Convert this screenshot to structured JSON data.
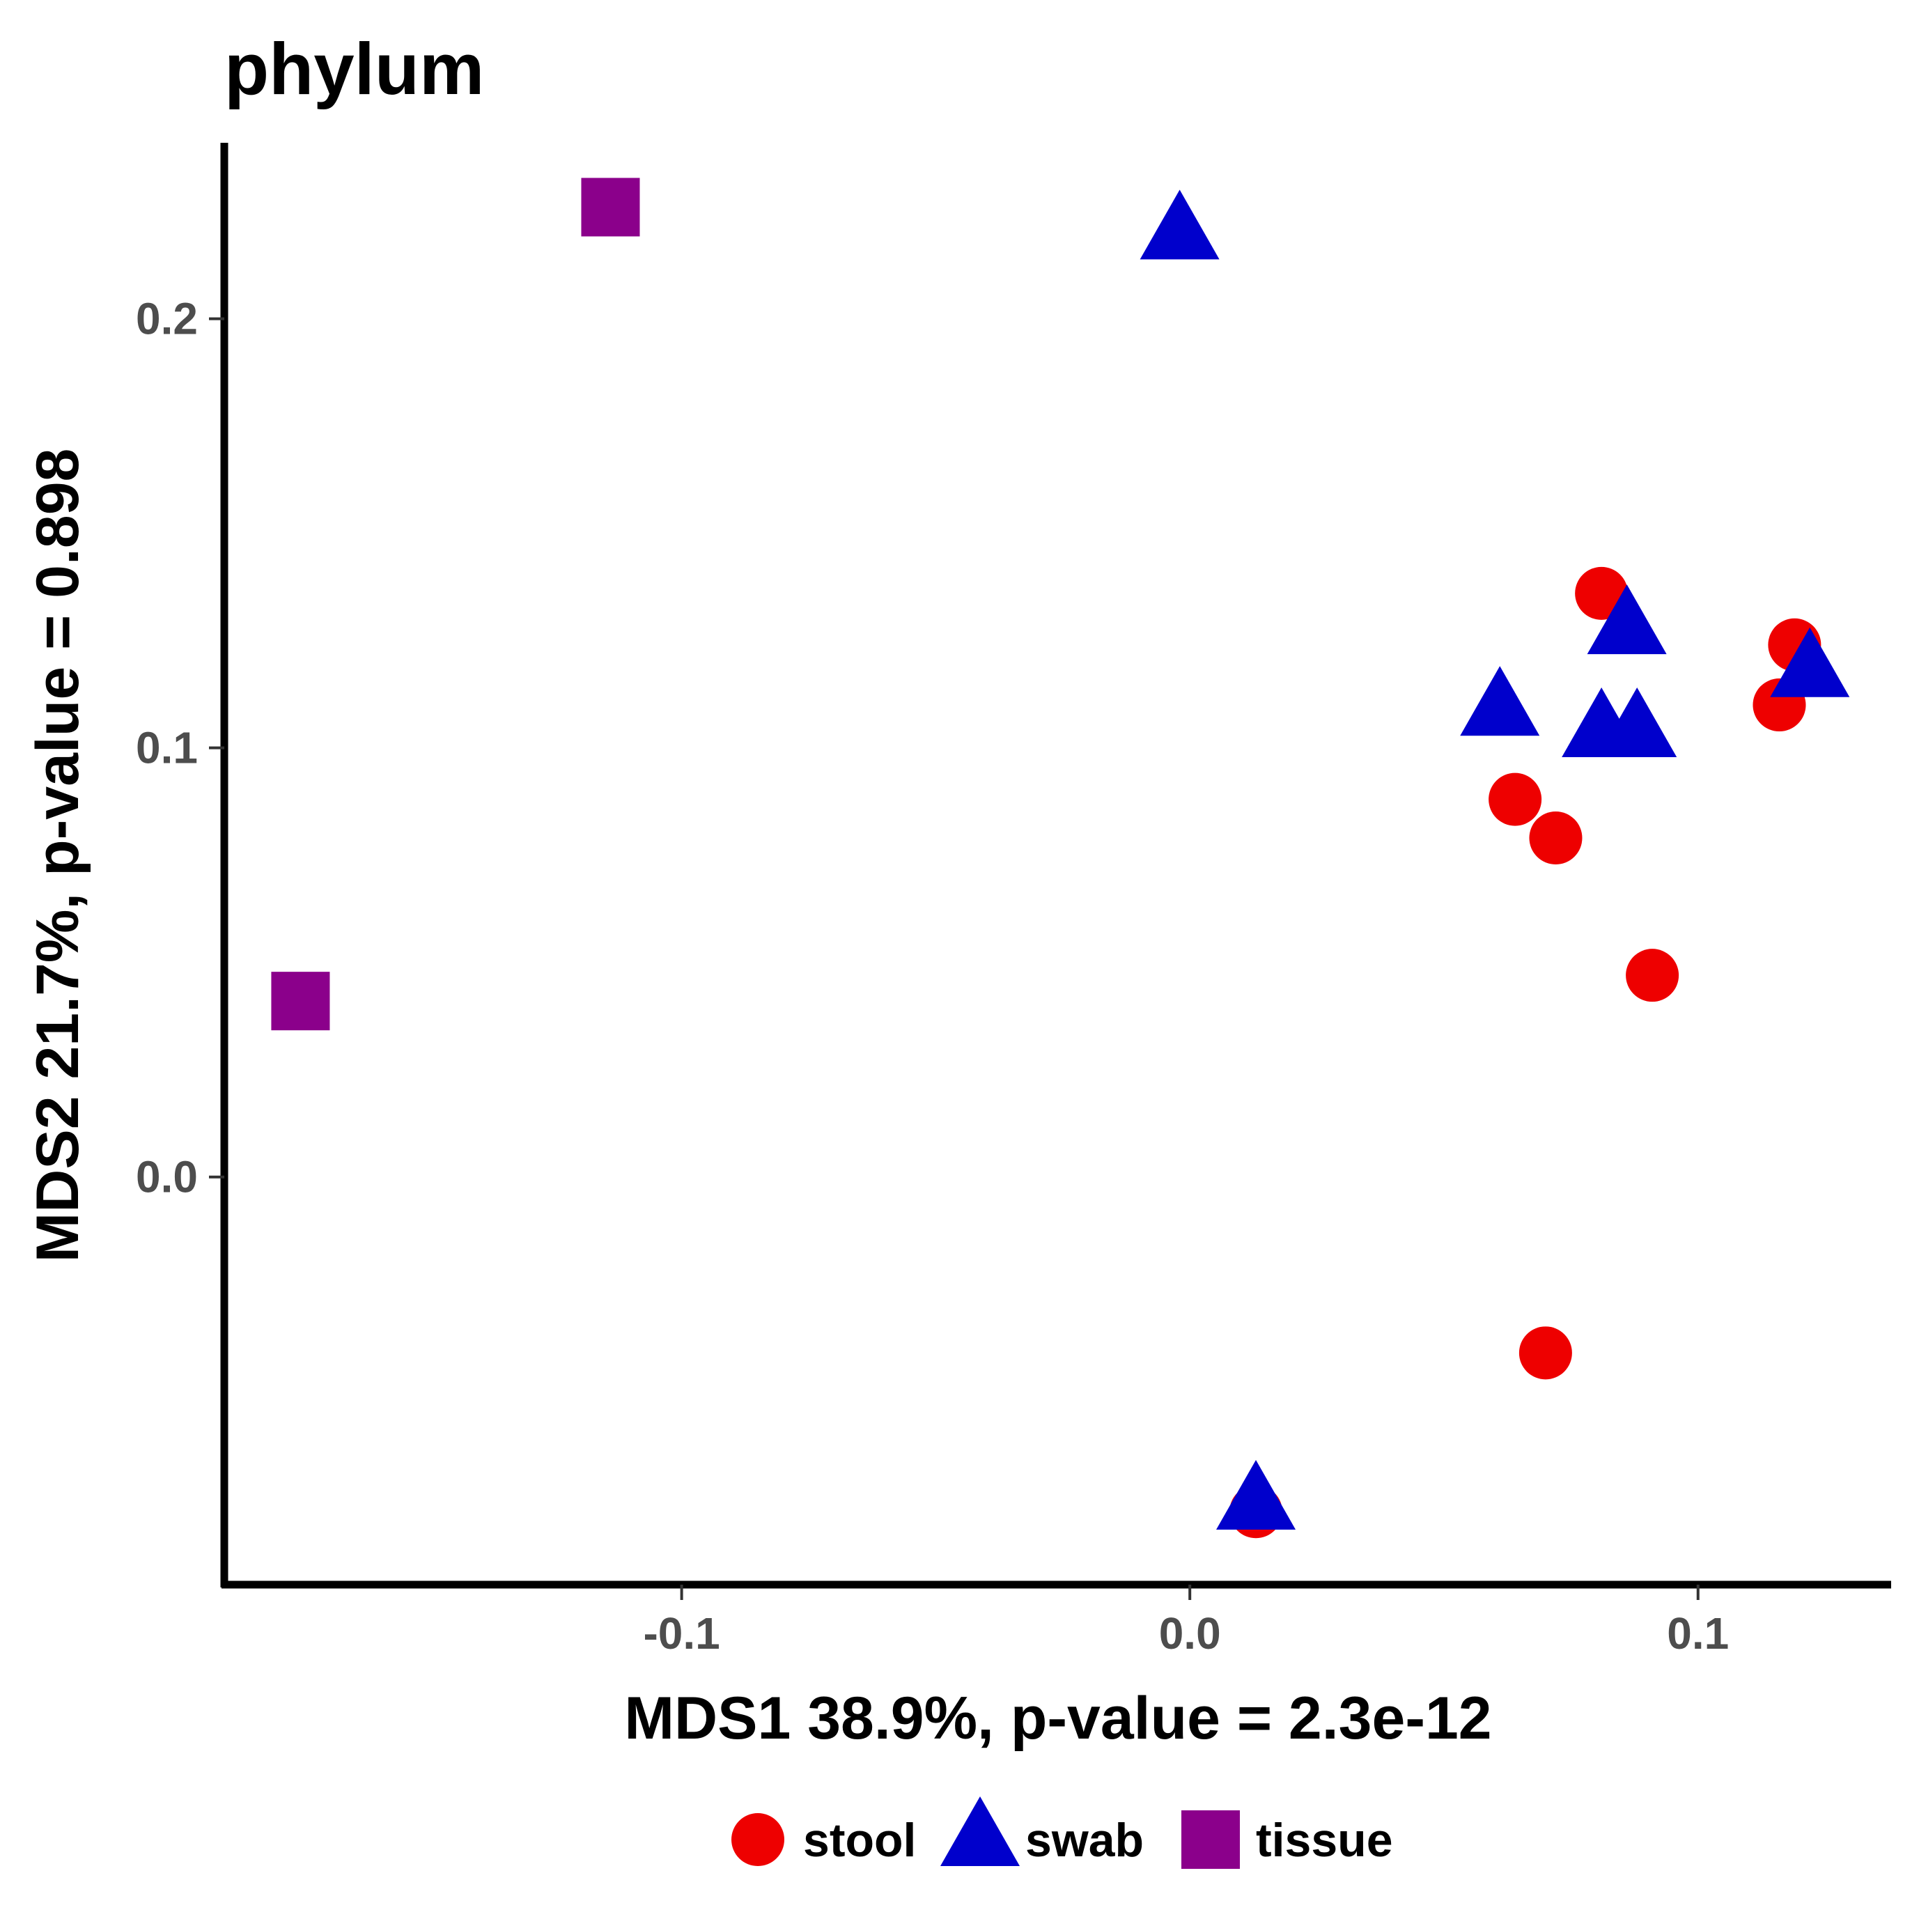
{
  "chart_data": {
    "type": "scatter",
    "title": "phylum",
    "xlabel": "MDS1 38.9%, p-value = 2.3e-12",
    "ylabel": "MDS2 21.7%, p-value = 0.898",
    "xlim": [
      -0.19,
      0.138
    ],
    "ylim": [
      -0.095,
      0.241
    ],
    "xticks": [
      -0.1,
      0.0,
      0.1
    ],
    "xtick_labels": [
      "-0.1",
      "0.0",
      "0.1"
    ],
    "yticks": [
      0.0,
      0.1,
      0.2
    ],
    "ytick_labels": [
      "0.0",
      "0.1",
      "0.2"
    ],
    "grid": false,
    "legend_position": "bottom",
    "series": [
      {
        "name": "stool",
        "color": "#ee0000",
        "marker": "circle",
        "points": [
          {
            "x": 0.081,
            "y": 0.136
          },
          {
            "x": 0.119,
            "y": 0.124
          },
          {
            "x": 0.116,
            "y": 0.11
          },
          {
            "x": 0.064,
            "y": 0.088
          },
          {
            "x": 0.072,
            "y": 0.079
          },
          {
            "x": 0.091,
            "y": 0.047
          },
          {
            "x": 0.07,
            "y": -0.041
          },
          {
            "x": 0.013,
            "y": -0.078
          }
        ]
      },
      {
        "name": "swab",
        "color": "#0000cc",
        "marker": "triangle",
        "points": [
          {
            "x": -0.002,
            "y": 0.22
          },
          {
            "x": 0.086,
            "y": 0.128
          },
          {
            "x": 0.122,
            "y": 0.118
          },
          {
            "x": 0.061,
            "y": 0.109
          },
          {
            "x": 0.081,
            "y": 0.104
          },
          {
            "x": 0.088,
            "y": 0.104
          },
          {
            "x": 0.013,
            "y": -0.076
          }
        ]
      },
      {
        "name": "tissue",
        "color": "#8b008b",
        "marker": "square",
        "points": [
          {
            "x": -0.114,
            "y": 0.226
          },
          {
            "x": -0.175,
            "y": 0.041
          }
        ]
      }
    ]
  }
}
